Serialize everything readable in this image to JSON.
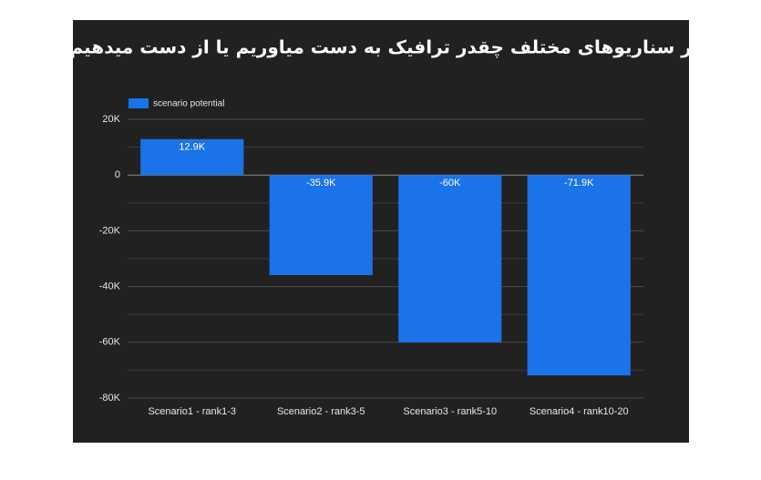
{
  "chart_data": {
    "type": "bar",
    "title": "در سناریوهای مختلف چقدر ترافیک به دست میاوریم یا از دست میدهیم؟",
    "categories": [
      "Scenario1 - rank1-3",
      "Scenario2 - rank3-5",
      "Scenario3 - rank5-10",
      "Scenario4 - rank10-20"
    ],
    "series": [
      {
        "name": "scenario potential",
        "color": "#1a73e8",
        "values": [
          12900,
          -35900,
          -60000,
          -71900
        ],
        "value_labels": [
          "12.9K",
          "-35.9K",
          "-60K",
          "-71.9K"
        ]
      }
    ],
    "ylim": [
      -80000,
      20000
    ],
    "yticks": [
      {
        "value": 20000,
        "label": "20K"
      },
      0,
      {
        "value": -20000,
        "label": "-20K"
      },
      {
        "value": -40000,
        "label": "-40K"
      },
      {
        "value": -60000,
        "label": "-60K"
      },
      {
        "value": -80000,
        "label": "-80K"
      }
    ],
    "yminorticks": [
      10000,
      -10000,
      -30000,
      -50000,
      -70000
    ],
    "grid": true,
    "legend": "top-left"
  }
}
